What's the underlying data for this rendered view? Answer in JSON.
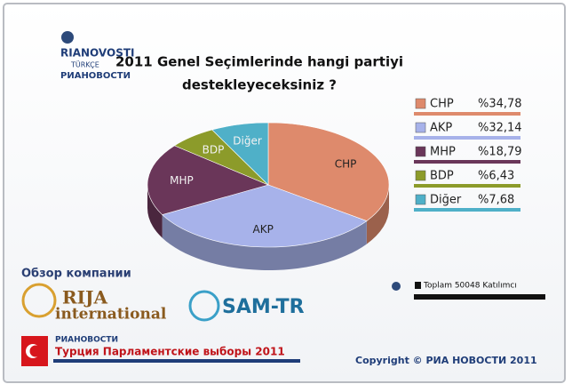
{
  "chart_data": {
    "type": "pie",
    "title": [
      "2011 Genel Seçimlerinde hangi partiyi",
      "destekleyeceksiniz ?"
    ],
    "categories": [
      "CHP",
      "AKP",
      "MHP",
      "BDP",
      "Diğer"
    ],
    "values": [
      34.78,
      32.14,
      18.79,
      6.43,
      7.68
    ],
    "value_labels": [
      "%34,78",
      "%32,14",
      "%18,79",
      "%6,43",
      "%7,68"
    ],
    "colors": [
      "#de8a6c",
      "#a7b2ea",
      "#6a3659",
      "#8c9b2a",
      "#4fb0c8"
    ],
    "legend": "right",
    "note": "Toplam 50048 Katılımcı"
  },
  "branding": {
    "logo_top": [
      "RIANOVOSTI",
      "TÜRKÇE",
      "РИАНОВОСТИ"
    ],
    "overview": "Обзор компании",
    "partners": [
      "RIJA",
      "international",
      "SAM-TR"
    ],
    "footer_logo": "РИАНОВОСТИ",
    "footer_title": "Турция Парламентские выборы 2011",
    "copyright": "Copyright © РИА НОВОСТИ 2011"
  }
}
